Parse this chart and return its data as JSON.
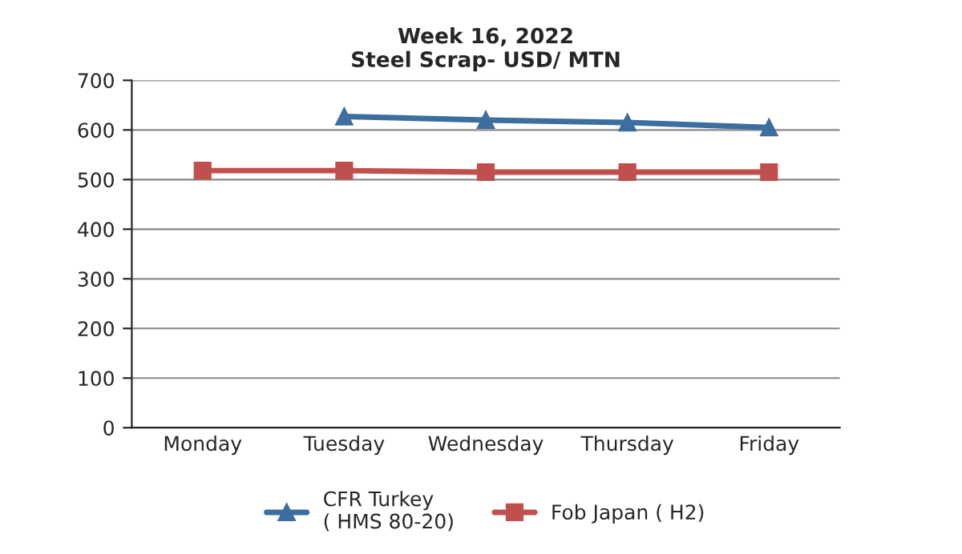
{
  "chart_data": {
    "type": "line",
    "title": "Week 16, 2022\nSteel Scrap- USD/ MTN",
    "categories": [
      "Monday",
      "Tuesday",
      "Wednesday",
      "Thursday",
      "Friday"
    ],
    "series": [
      {
        "name": "CFR Turkey\n( HMS 80-20)",
        "color": "#3c6e9f",
        "marker": "triangle",
        "values": [
          null,
          627,
          620,
          615,
          605
        ]
      },
      {
        "name": "Fob Japan ( H2)",
        "color": "#c0504d",
        "marker": "square",
        "values": [
          518,
          518,
          515,
          515,
          515
        ]
      }
    ],
    "ylim": [
      0,
      700
    ],
    "yticks": [
      0,
      100,
      200,
      300,
      400,
      500,
      600,
      700
    ],
    "grid": "y",
    "legend": "bottom"
  }
}
